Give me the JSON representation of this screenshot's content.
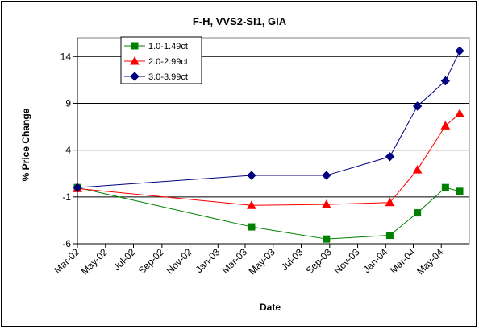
{
  "chart_data": {
    "type": "line",
    "title": "F-H, VVS2-SI1, GIA",
    "xlabel": "Date",
    "ylabel": "% Price Change",
    "ylim": [
      -6,
      16
    ],
    "yticks": [
      -6,
      -1,
      4,
      9,
      14
    ],
    "grid": "horizontal",
    "legend_position": "top-left",
    "x_tick_labels": [
      "Mar-02",
      "May-02",
      "Jul-02",
      "Sep-02",
      "Nov-02",
      "Jan-03",
      "Mar-03",
      "May-03",
      "Jul-03",
      "Sep-03",
      "Nov-03",
      "Jan-04",
      "Mar-04",
      "May-04"
    ],
    "series": [
      {
        "name": "1.0-1.49ct",
        "color": "#008000",
        "marker": "square",
        "points": [
          {
            "x": "2002-03-01",
            "y": 0.0
          },
          {
            "x": "2003-03-15",
            "y": -4.2
          },
          {
            "x": "2003-08-25",
            "y": -5.5
          },
          {
            "x": "2004-01-10",
            "y": -5.1
          },
          {
            "x": "2004-03-10",
            "y": -2.7
          },
          {
            "x": "2004-05-10",
            "y": 0.0
          },
          {
            "x": "2004-06-10",
            "y": -0.4
          }
        ]
      },
      {
        "name": "2.0-2.99ct",
        "color": "#ff0000",
        "marker": "triangle",
        "points": [
          {
            "x": "2002-03-01",
            "y": -0.1
          },
          {
            "x": "2003-03-15",
            "y": -1.9
          },
          {
            "x": "2003-08-25",
            "y": -1.8
          },
          {
            "x": "2004-01-10",
            "y": -1.6
          },
          {
            "x": "2004-03-10",
            "y": 1.9
          },
          {
            "x": "2004-05-10",
            "y": 6.6
          },
          {
            "x": "2004-06-10",
            "y": 7.9
          }
        ]
      },
      {
        "name": "3.0-3.99ct",
        "color": "#000080",
        "marker": "diamond",
        "points": [
          {
            "x": "2002-03-01",
            "y": 0.0
          },
          {
            "x": "2003-03-15",
            "y": 1.3
          },
          {
            "x": "2003-08-25",
            "y": 1.3
          },
          {
            "x": "2004-01-10",
            "y": 3.3
          },
          {
            "x": "2004-03-10",
            "y": 8.7
          },
          {
            "x": "2004-05-10",
            "y": 11.4
          },
          {
            "x": "2004-06-10",
            "y": 14.6
          }
        ]
      }
    ]
  }
}
